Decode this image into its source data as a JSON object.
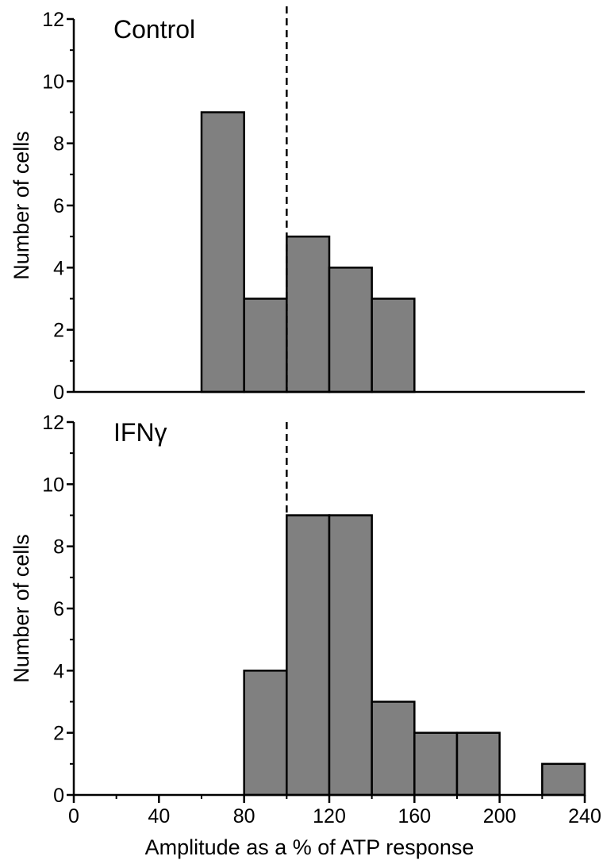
{
  "chart_data": [
    {
      "type": "bar",
      "title": "Control",
      "xlabel": "",
      "ylabel": "Number of cells",
      "xlim": [
        0,
        240
      ],
      "ylim": [
        0,
        12
      ],
      "y_ticks": [
        0,
        2,
        4,
        6,
        8,
        10,
        12
      ],
      "bin_width": 20,
      "bins": [
        {
          "start": 60,
          "end": 80,
          "count": 9
        },
        {
          "start": 80,
          "end": 100,
          "count": 3
        },
        {
          "start": 100,
          "end": 120,
          "count": 5
        },
        {
          "start": 120,
          "end": 140,
          "count": 4
        },
        {
          "start": 140,
          "end": 160,
          "count": 3
        }
      ],
      "reference_line_x": 100,
      "bar_color": "#808080"
    },
    {
      "type": "bar",
      "title": "IFNγ",
      "xlabel": "Amplitude as a % of ATP response",
      "ylabel": "Number of cells",
      "xlim": [
        0,
        240
      ],
      "ylim": [
        0,
        12
      ],
      "y_ticks": [
        0,
        2,
        4,
        6,
        8,
        10,
        12
      ],
      "x_ticks": [
        0,
        40,
        80,
        120,
        160,
        200,
        240
      ],
      "bin_width": 20,
      "bins": [
        {
          "start": 80,
          "end": 100,
          "count": 4
        },
        {
          "start": 100,
          "end": 120,
          "count": 9
        },
        {
          "start": 120,
          "end": 140,
          "count": 9
        },
        {
          "start": 140,
          "end": 160,
          "count": 3
        },
        {
          "start": 160,
          "end": 180,
          "count": 2
        },
        {
          "start": 180,
          "end": 200,
          "count": 2
        },
        {
          "start": 220,
          "end": 240,
          "count": 1
        }
      ],
      "reference_line_x": 100,
      "bar_color": "#808080"
    }
  ]
}
